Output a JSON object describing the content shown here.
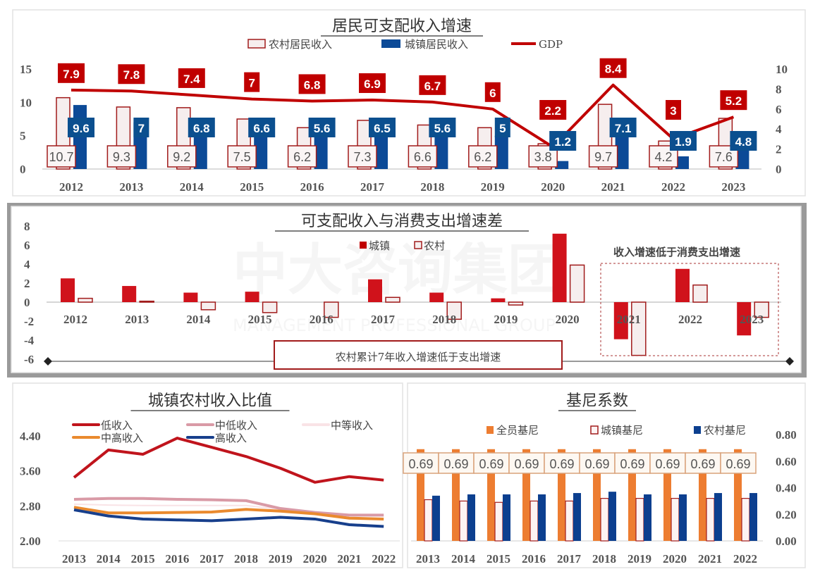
{
  "watermark": {
    "cn": "中大咨询集团",
    "en": "MANAGEMENT PROFESSIONAL GROUP"
  },
  "colors": {
    "dark_red": "#c00000",
    "blue": "#0c4a97",
    "rural_fill": "#f6eeee",
    "rural_border": "#a11b1b",
    "orange": "#ed7d31",
    "pink": "#d99aa6",
    "light_pink": "#f7dfe3",
    "navy": "#1f3f8f"
  },
  "chart_data": [
    {
      "type": "bar",
      "title": "居民可支配收入增速",
      "categories": [
        "2012",
        "2013",
        "2014",
        "2015",
        "2016",
        "2017",
        "2018",
        "2019",
        "2020",
        "2021",
        "2022",
        "2023"
      ],
      "left_axis": {
        "range": [
          0,
          15
        ],
        "ticks": [
          "0",
          "5",
          "10",
          "15"
        ]
      },
      "right_axis": {
        "range": [
          0,
          10
        ],
        "ticks": [
          "0",
          "2",
          "4",
          "6",
          "8",
          "10"
        ]
      },
      "legend_placement": "top",
      "series": [
        {
          "name": "农村居民收入",
          "kind": "bar",
          "axis": "left",
          "values": [
            10.7,
            9.3,
            9.2,
            7.5,
            6.2,
            7.3,
            6.6,
            6.2,
            3.8,
            9.7,
            4.2,
            7.6
          ]
        },
        {
          "name": "城镇居民收入",
          "kind": "bar",
          "axis": "left",
          "values": [
            9.6,
            7,
            6.8,
            6.6,
            5.6,
            6.5,
            5.6,
            5,
            1.2,
            7.1,
            1.9,
            4.8
          ]
        },
        {
          "name": "GDP",
          "kind": "line",
          "axis": "right",
          "values": [
            7.9,
            7.8,
            7.4,
            7,
            6.8,
            6.9,
            6.7,
            6,
            2.2,
            8.4,
            3,
            5.2
          ]
        }
      ]
    },
    {
      "type": "bar",
      "title": "可支配收入与消费支出增速差",
      "categories": [
        "2012",
        "2013",
        "2014",
        "2015",
        "2016",
        "2017",
        "2018",
        "2019",
        "2020",
        "2021",
        "2022",
        "2023"
      ],
      "y_axis": {
        "range": [
          -6,
          8
        ],
        "ticks": [
          "-6",
          "-4",
          "-2",
          "0",
          "2",
          "4",
          "6",
          "8"
        ]
      },
      "legend_placement": "top",
      "series": [
        {
          "name": "城镇",
          "values": [
            2.5,
            1.7,
            1.0,
            1.1,
            0,
            2.4,
            1.0,
            0.4,
            7.2,
            -3.9,
            3.5,
            -3.5
          ]
        },
        {
          "name": "农村",
          "values": [
            0.4,
            0.1,
            -0.8,
            -1.1,
            -1.6,
            0.5,
            -1.8,
            -0.3,
            3.9,
            -5.6,
            1.8,
            -1.6
          ]
        }
      ],
      "annotations": [
        "农村累计7年收入增速低于支出增速",
        "收入增速低于消费支出增速"
      ]
    },
    {
      "type": "line",
      "title": "城镇农村收入比值",
      "categories": [
        "2013",
        "2014",
        "2015",
        "2016",
        "2017",
        "2018",
        "2019",
        "2020",
        "2021",
        "2022"
      ],
      "y_axis": {
        "range": [
          2.0,
          4.4
        ],
        "ticks": [
          "2.00",
          "2.80",
          "3.60",
          "4.40"
        ]
      },
      "legend_placement": "top",
      "series": [
        {
          "name": "低收入",
          "values": [
            3.45,
            4.08,
            3.98,
            4.35,
            4.14,
            3.93,
            3.66,
            3.34,
            3.47,
            3.39
          ]
        },
        {
          "name": "中低收入",
          "values": [
            2.95,
            2.97,
            2.97,
            2.95,
            2.94,
            2.92,
            2.74,
            2.65,
            2.59,
            2.59
          ]
        },
        {
          "name": "中等收入",
          "values": [
            2.84,
            2.82,
            2.81,
            2.81,
            2.81,
            2.81,
            2.72,
            2.64,
            2.59,
            2.57
          ]
        },
        {
          "name": "中高收入",
          "values": [
            2.77,
            2.64,
            2.64,
            2.65,
            2.66,
            2.72,
            2.68,
            2.62,
            2.52,
            2.5
          ]
        },
        {
          "name": "高收入",
          "values": [
            2.71,
            2.57,
            2.5,
            2.48,
            2.46,
            2.5,
            2.54,
            2.5,
            2.37,
            2.33
          ]
        }
      ]
    },
    {
      "type": "bar",
      "title": "基尼系数",
      "categories": [
        "2013",
        "2014",
        "2015",
        "2016",
        "2017",
        "2018",
        "2019",
        "2020",
        "2021",
        "2022"
      ],
      "y_axis": {
        "range": [
          0,
          0.8
        ],
        "ticks": [
          "0.00",
          "0.20",
          "0.40",
          "0.60",
          "0.80"
        ],
        "side": "right"
      },
      "legend_placement": "top",
      "series": [
        {
          "name": "全员基尼",
          "values": [
            0.69,
            0.69,
            0.69,
            0.69,
            0.69,
            0.69,
            0.69,
            0.69,
            0.69,
            0.69
          ],
          "labels": [
            "0.69",
            "0.69",
            "0.69",
            "0.69",
            "0.69",
            "0.69",
            "0.69",
            "0.69",
            "0.69",
            "0.69"
          ]
        },
        {
          "name": "城镇基尼",
          "values": [
            0.31,
            0.3,
            0.29,
            0.3,
            0.3,
            0.32,
            0.32,
            0.32,
            0.32,
            0.32
          ]
        },
        {
          "name": "农村基尼",
          "values": [
            0.34,
            0.35,
            0.35,
            0.35,
            0.36,
            0.37,
            0.35,
            0.35,
            0.36,
            0.36
          ]
        }
      ]
    }
  ]
}
